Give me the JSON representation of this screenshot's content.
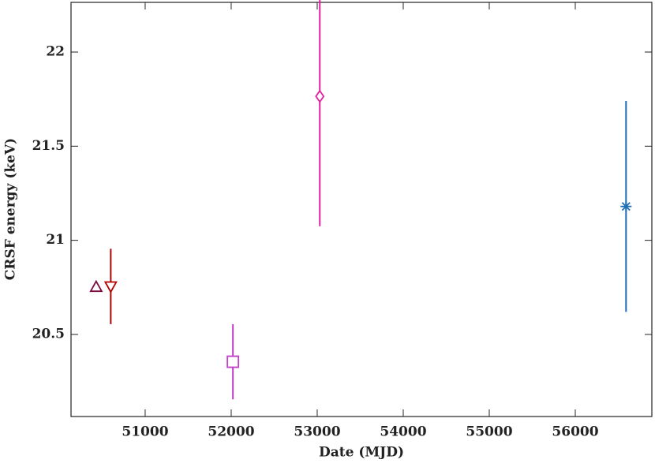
{
  "chart_data": {
    "type": "scatter",
    "xlabel": "Date (MJD)",
    "ylabel": "CRSF energy (keV)",
    "xlim": [
      50138,
      56890
    ],
    "ylim": [
      20.064,
      22.264
    ],
    "xticks": [
      51000,
      52000,
      53000,
      54000,
      55000,
      56000
    ],
    "yticks": [
      20.5,
      21,
      21.5,
      22
    ],
    "series": [
      {
        "color": "#7a0a3c",
        "marker": "triangle-up",
        "x": [
          50430
        ],
        "values": [
          20.753
        ],
        "errors": [
          null
        ]
      },
      {
        "color": "#b00000",
        "marker": "triangle-down",
        "x": [
          50600
        ],
        "values": [
          20.755
        ],
        "errors": [
          0.2
        ]
      },
      {
        "color": "#c040c8",
        "marker": "square",
        "x": [
          52020
        ],
        "values": [
          20.355
        ],
        "errors": [
          0.2
        ]
      },
      {
        "color": "#e020a0",
        "marker": "diamond",
        "x": [
          53030
        ],
        "values": [
          21.765
        ],
        "errors": [
          0.69
        ]
      },
      {
        "color": "#1f6fb4",
        "marker": "star",
        "x": [
          56590
        ],
        "values": [
          21.18
        ],
        "errors": [
          0.56
        ]
      }
    ]
  }
}
